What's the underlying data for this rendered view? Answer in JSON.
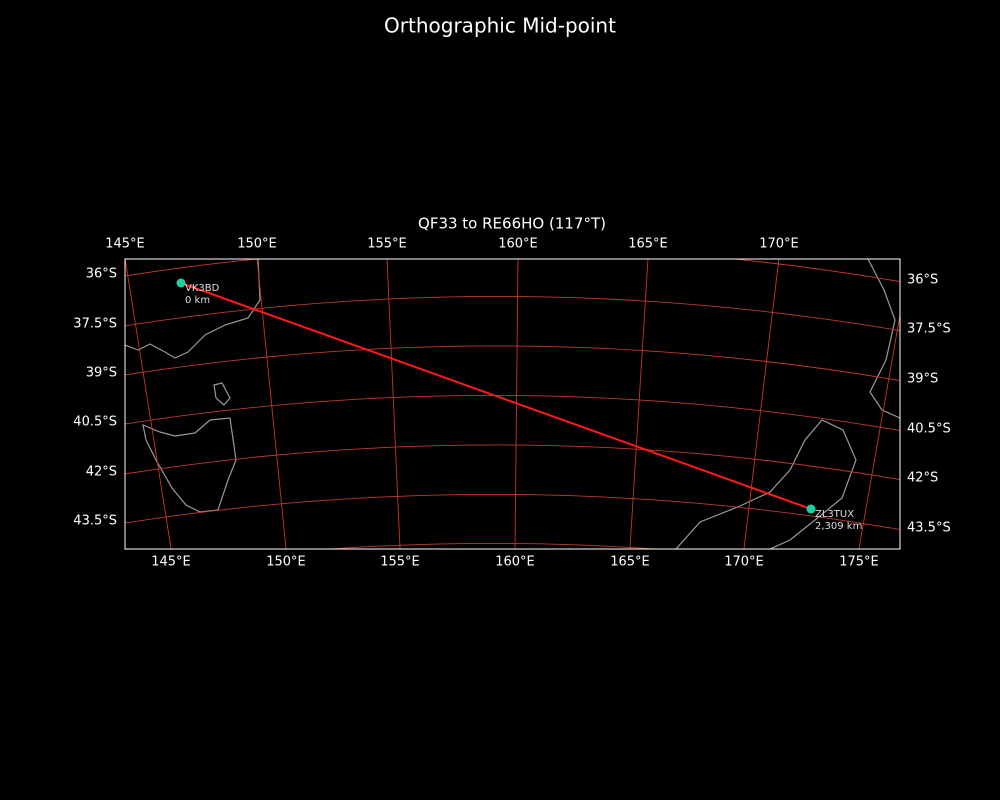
{
  "title": "Orthographic Mid-point",
  "map": {
    "subtitle": "QF33 to RE66HO (117°T)",
    "top_lon_labels": [
      "145°E",
      "150°E",
      "155°E",
      "160°E",
      "165°E",
      "170°E"
    ],
    "bottom_lon_labels": [
      "145°E",
      "150°E",
      "155°E",
      "160°E",
      "165°E",
      "170°E",
      "175°E"
    ],
    "left_lat_labels": [
      "36°S",
      "37.5°S",
      "39°S",
      "40.5°S",
      "42°S",
      "43.5°S"
    ],
    "right_lat_labels": [
      "36°S",
      "37.5°S",
      "39°S",
      "40.5°S",
      "42°S",
      "43.5°S"
    ],
    "stations": [
      {
        "call": "VK3BD",
        "distance": "0 km"
      },
      {
        "call": "ZL3TUX",
        "distance": "2,309 km"
      }
    ]
  }
}
